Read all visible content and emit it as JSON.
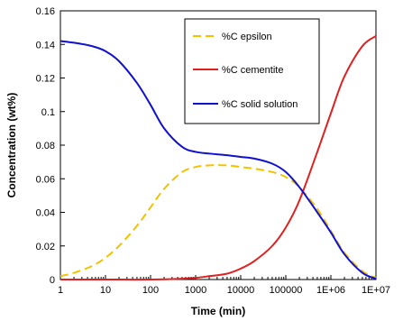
{
  "chart_data": {
    "type": "line",
    "xlabel": "Time (min)",
    "ylabel": "Concentration (wt%)",
    "x_scale": "log",
    "xlim": [
      1,
      10000000
    ],
    "ylim": [
      0,
      0.16
    ],
    "x_ticks": [
      1,
      10,
      100,
      1000,
      10000,
      100000,
      1000000,
      10000000
    ],
    "x_tick_labels": [
      "1",
      "10",
      "100",
      "1000",
      "10000",
      "100000",
      "1E+06",
      "1E+07"
    ],
    "y_ticks": [
      0,
      0.02,
      0.04,
      0.06,
      0.08,
      0.1,
      0.12,
      0.14,
      0.16
    ],
    "y_tick_labels": [
      "0",
      "0.02",
      "0.04",
      "0.06",
      "0.08",
      "0.1",
      "0.12",
      "0.14",
      "0.16"
    ],
    "grid": false,
    "legend_position": "top-right",
    "series": [
      {
        "name": "%C epsilon",
        "color": "#f2c200",
        "dash": "dashed",
        "x": [
          1,
          2,
          5,
          10,
          20,
          50,
          100,
          200,
          500,
          1000,
          2000,
          5000,
          10000,
          20000,
          50000,
          100000,
          200000,
          500000,
          1000000,
          2000000,
          5000000,
          10000000
        ],
        "y": [
          0.002,
          0.004,
          0.008,
          0.013,
          0.02,
          0.032,
          0.043,
          0.054,
          0.064,
          0.067,
          0.068,
          0.068,
          0.067,
          0.066,
          0.064,
          0.061,
          0.055,
          0.042,
          0.029,
          0.016,
          0.005,
          0.001
        ]
      },
      {
        "name": "%C cementite",
        "color": "#e02020",
        "dash": "solid",
        "x": [
          1,
          10,
          100,
          500,
          1000,
          2000,
          5000,
          10000,
          20000,
          50000,
          100000,
          200000,
          500000,
          1000000,
          2000000,
          5000000,
          10000000
        ],
        "y": [
          0,
          0,
          0,
          0.0005,
          0.001,
          0.002,
          0.0035,
          0.0065,
          0.011,
          0.02,
          0.031,
          0.047,
          0.076,
          0.099,
          0.121,
          0.139,
          0.145
        ]
      },
      {
        "name": "%C solid solution",
        "color": "#1010d0",
        "dash": "solid",
        "x": [
          1,
          2,
          5,
          10,
          20,
          50,
          100,
          200,
          500,
          1000,
          2000,
          5000,
          10000,
          20000,
          50000,
          100000,
          200000,
          500000,
          1000000,
          2000000,
          5000000,
          10000000
        ],
        "y": [
          0.142,
          0.141,
          0.139,
          0.136,
          0.13,
          0.117,
          0.104,
          0.09,
          0.079,
          0.076,
          0.075,
          0.074,
          0.073,
          0.072,
          0.069,
          0.064,
          0.055,
          0.04,
          0.028,
          0.015,
          0.004,
          0.0005
        ]
      }
    ]
  }
}
